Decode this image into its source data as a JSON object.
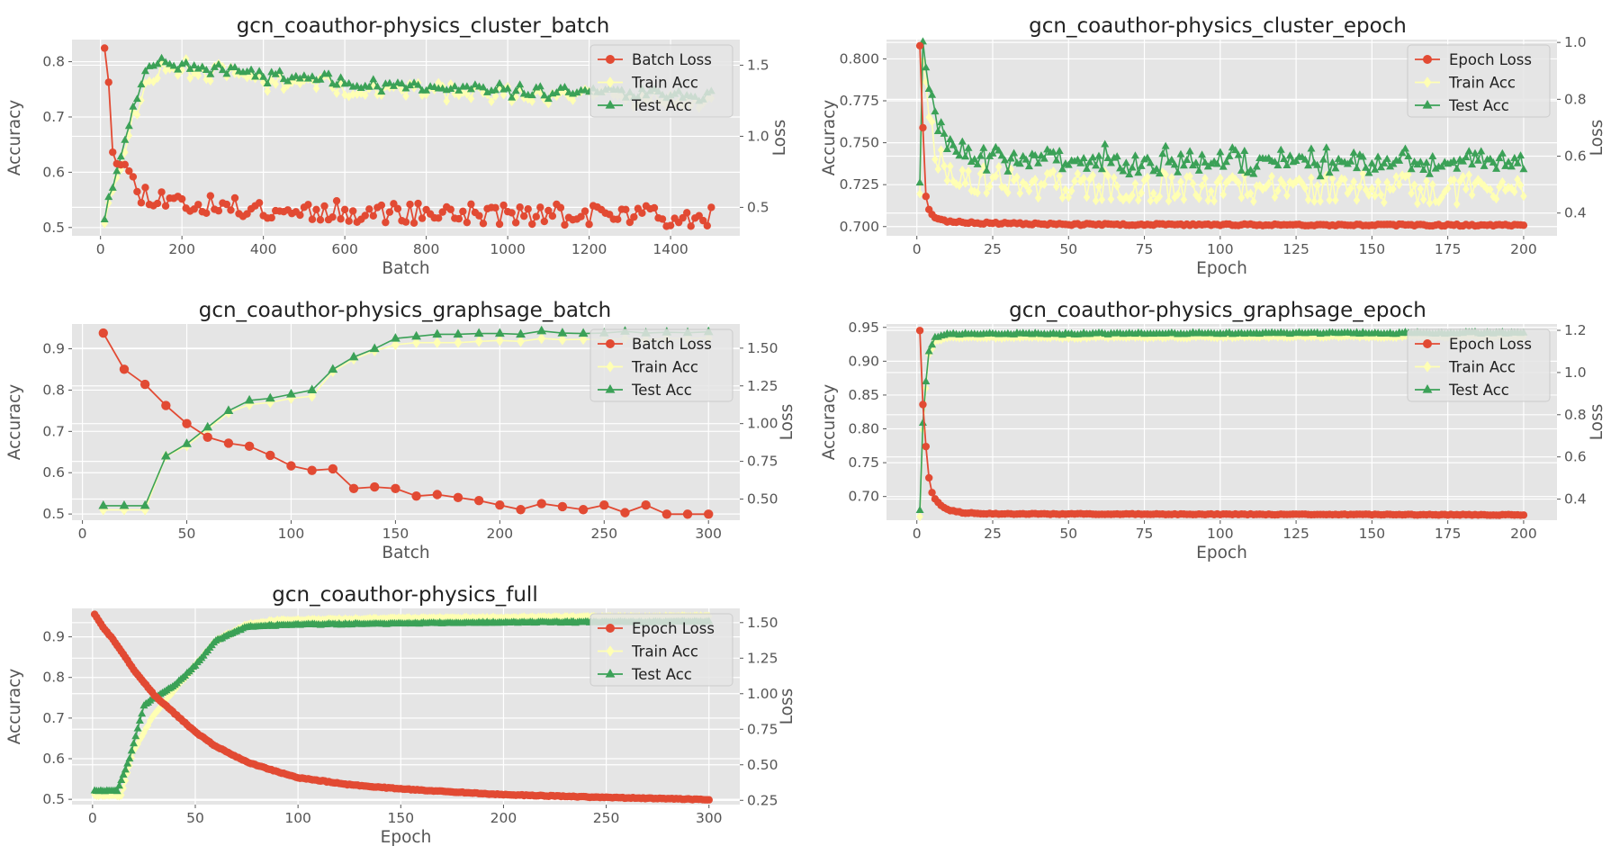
{
  "colors": {
    "loss": "#e24a33",
    "train": "#ffffb3",
    "test": "#3ba157",
    "panel_bg": "#e5e5e5",
    "grid": "#ffffff"
  },
  "chart_data": [
    {
      "type": "line",
      "title": "gcn_coauthor-physics_cluster_batch",
      "xlabel": "Batch",
      "ylabel": "Accuracy",
      "y2label": "Loss",
      "xlim": [
        -70,
        1570
      ],
      "ylim": [
        0.485,
        0.84
      ],
      "y2lim": [
        0.3,
        1.68
      ],
      "xticks": [
        0,
        200,
        400,
        600,
        800,
        1000,
        1200,
        1400
      ],
      "yticks": [
        0.5,
        0.6,
        0.7,
        0.8
      ],
      "ytick_labels": [
        "0.5",
        "0.6",
        "0.7",
        "0.8"
      ],
      "y2ticks": [
        0.5,
        1.0,
        1.5
      ],
      "y2tick_labels": [
        "0.5",
        "1.0",
        "1.5"
      ],
      "legend": [
        "Batch Loss",
        "Train Acc",
        "Test Acc"
      ],
      "legend_position": "upper-right",
      "grid": true,
      "gen": {
        "x": [
          10,
          1500,
          10
        ],
        "loss": [
          [
            10,
            1.62
          ],
          [
            20,
            1.4
          ],
          [
            30,
            0.95
          ],
          [
            40,
            0.85
          ],
          [
            50,
            0.82
          ],
          [
            60,
            0.78
          ],
          [
            80,
            0.68
          ],
          [
            100,
            0.6
          ],
          [
            150,
            0.57
          ],
          [
            200,
            0.53
          ],
          [
            300,
            0.5
          ],
          [
            600,
            0.47
          ],
          [
            1000,
            0.45
          ],
          [
            1500,
            0.44
          ]
        ],
        "loss_noise": 0.075,
        "loss_spikes": [
          [
            10,
            1.62
          ],
          [
            20,
            1.38
          ],
          [
            1500,
            0.5
          ]
        ],
        "train": [
          [
            10,
            0.515
          ],
          [
            40,
            0.58
          ],
          [
            80,
            0.7
          ],
          [
            120,
            0.77
          ],
          [
            170,
            0.79
          ],
          [
            250,
            0.785
          ],
          [
            400,
            0.765
          ],
          [
            800,
            0.745
          ],
          [
            1500,
            0.73
          ]
        ],
        "train_noise": 0.018,
        "test": [
          [
            10,
            0.52
          ],
          [
            40,
            0.6
          ],
          [
            80,
            0.72
          ],
          [
            120,
            0.79
          ],
          [
            170,
            0.8
          ],
          [
            250,
            0.79
          ],
          [
            400,
            0.775
          ],
          [
            800,
            0.75
          ],
          [
            1500,
            0.74
          ]
        ],
        "test_noise": 0.015,
        "seed": 11
      }
    },
    {
      "type": "line",
      "title": "gcn_coauthor-physics_cluster_epoch",
      "xlabel": "Epoch",
      "ylabel": "Accuracy",
      "y2label": "Loss",
      "xlim": [
        -10,
        211
      ],
      "ylim": [
        0.6945,
        0.8115
      ],
      "y2lim": [
        0.32,
        1.01
      ],
      "xticks": [
        0,
        25,
        50,
        75,
        100,
        125,
        150,
        175,
        200
      ],
      "yticks": [
        0.7,
        0.725,
        0.75,
        0.775,
        0.8
      ],
      "ytick_labels": [
        "0.700",
        "0.725",
        "0.750",
        "0.775",
        "0.800"
      ],
      "y2ticks": [
        0.4,
        0.6,
        0.8,
        1.0
      ],
      "y2tick_labels": [
        "0.4",
        "0.6",
        "0.8",
        "1.0"
      ],
      "legend": [
        "Epoch Loss",
        "Train Acc",
        "Test Acc"
      ],
      "legend_position": "upper-right",
      "grid": true,
      "gen": {
        "x": [
          1,
          200,
          1
        ],
        "loss": [
          [
            1,
            0.99
          ],
          [
            2,
            0.7
          ],
          [
            3,
            0.46
          ],
          [
            4,
            0.41
          ],
          [
            6,
            0.385
          ],
          [
            10,
            0.37
          ],
          [
            20,
            0.365
          ],
          [
            50,
            0.36
          ],
          [
            200,
            0.357
          ]
        ],
        "loss_noise": 0.003,
        "loss_spikes": [],
        "train": [
          [
            1,
            0.722
          ],
          [
            2,
            0.795
          ],
          [
            4,
            0.77
          ],
          [
            6,
            0.745
          ],
          [
            10,
            0.735
          ],
          [
            20,
            0.728
          ],
          [
            60,
            0.724
          ],
          [
            200,
            0.722
          ]
        ],
        "train_noise": 0.009,
        "test": [
          [
            1,
            0.727
          ],
          [
            2,
            0.805
          ],
          [
            4,
            0.785
          ],
          [
            8,
            0.755
          ],
          [
            15,
            0.745
          ],
          [
            30,
            0.74
          ],
          [
            200,
            0.738
          ]
        ],
        "test_noise": 0.01,
        "seed": 23
      }
    },
    {
      "type": "line",
      "title": "gcn_coauthor-physics_graphsage_batch",
      "xlabel": "Batch",
      "ylabel": "Accuracy",
      "y2label": "Loss",
      "xlim": [
        -5,
        315
      ],
      "ylim": [
        0.485,
        0.96
      ],
      "y2lim": [
        0.36,
        1.66
      ],
      "xticks": [
        0,
        50,
        100,
        150,
        200,
        250,
        300
      ],
      "yticks": [
        0.5,
        0.6,
        0.7,
        0.8,
        0.9
      ],
      "ytick_labels": [
        "0.5",
        "0.6",
        "0.7",
        "0.8",
        "0.9"
      ],
      "y2ticks": [
        0.5,
        0.75,
        1.0,
        1.25,
        1.5
      ],
      "y2tick_labels": [
        "0.50",
        "0.75",
        "1.00",
        "1.25",
        "1.50"
      ],
      "legend": [
        "Batch Loss",
        "Train Acc",
        "Test Acc"
      ],
      "legend_position": "upper-right",
      "grid": true,
      "x": [
        10,
        20,
        30,
        40,
        50,
        60,
        70,
        80,
        90,
        100,
        110,
        120,
        130,
        140,
        150,
        160,
        170,
        180,
        190,
        200,
        210,
        220,
        230,
        240,
        250,
        260,
        270,
        280,
        290,
        300
      ],
      "series": [
        {
          "name": "Batch Loss",
          "axis": "right",
          "values": [
            1.6,
            1.36,
            1.26,
            1.12,
            1.0,
            0.91,
            0.87,
            0.85,
            0.79,
            0.72,
            0.69,
            0.7,
            0.57,
            0.58,
            0.57,
            0.52,
            0.53,
            0.51,
            0.49,
            0.46,
            0.43,
            0.47,
            0.45,
            0.43,
            0.46,
            0.41,
            0.46,
            0.4,
            0.4,
            0.4
          ]
        },
        {
          "name": "Train Acc",
          "axis": "left",
          "values": [
            0.51,
            0.51,
            0.51,
            0.64,
            0.665,
            0.705,
            0.745,
            0.765,
            0.77,
            0.78,
            0.785,
            0.845,
            0.875,
            0.895,
            0.91,
            0.915,
            0.915,
            0.915,
            0.918,
            0.92,
            0.918,
            0.925,
            0.922,
            0.923,
            0.922,
            0.925,
            0.922,
            0.925,
            0.925,
            0.926
          ]
        },
        {
          "name": "Test Acc",
          "axis": "left",
          "values": [
            0.52,
            0.52,
            0.52,
            0.64,
            0.67,
            0.71,
            0.75,
            0.775,
            0.78,
            0.79,
            0.8,
            0.85,
            0.88,
            0.9,
            0.925,
            0.93,
            0.935,
            0.935,
            0.937,
            0.937,
            0.935,
            0.943,
            0.938,
            0.937,
            0.938,
            0.942,
            0.938,
            0.94,
            0.939,
            0.941
          ]
        }
      ]
    },
    {
      "type": "line",
      "title": "gcn_coauthor-physics_graphsage_epoch",
      "xlabel": "Epoch",
      "ylabel": "Accuracy",
      "y2label": "Loss",
      "xlim": [
        -10,
        211
      ],
      "ylim": [
        0.665,
        0.955
      ],
      "y2lim": [
        0.3,
        1.23
      ],
      "xticks": [
        0,
        25,
        50,
        75,
        100,
        125,
        150,
        175,
        200
      ],
      "yticks": [
        0.7,
        0.75,
        0.8,
        0.85,
        0.9,
        0.95
      ],
      "ytick_labels": [
        "0.70",
        "0.75",
        "0.80",
        "0.85",
        "0.90",
        "0.95"
      ],
      "y2ticks": [
        0.4,
        0.6,
        0.8,
        1.0,
        1.2
      ],
      "y2tick_labels": [
        "0.4",
        "0.6",
        "0.8",
        "1.0",
        "1.2"
      ],
      "legend": [
        "Epoch Loss",
        "Train Acc",
        "Test Acc"
      ],
      "legend_position": "upper-right",
      "grid": true,
      "gen": {
        "x": [
          1,
          200,
          1
        ],
        "loss": [
          [
            1,
            1.2
          ],
          [
            2,
            0.85
          ],
          [
            3,
            0.65
          ],
          [
            4,
            0.5
          ],
          [
            5,
            0.43
          ],
          [
            6,
            0.4
          ],
          [
            8,
            0.37
          ],
          [
            10,
            0.35
          ],
          [
            15,
            0.335
          ],
          [
            25,
            0.33
          ],
          [
            200,
            0.325
          ]
        ],
        "loss_noise": 0.002,
        "loss_spikes": [],
        "train": [
          [
            1,
            0.67
          ],
          [
            2,
            0.8
          ],
          [
            3,
            0.86
          ],
          [
            4,
            0.91
          ],
          [
            6,
            0.93
          ],
          [
            10,
            0.935
          ],
          [
            200,
            0.937
          ]
        ],
        "train_noise": 0.0015,
        "test": [
          [
            1,
            0.68
          ],
          [
            2,
            0.81
          ],
          [
            3,
            0.87
          ],
          [
            4,
            0.915
          ],
          [
            6,
            0.935
          ],
          [
            10,
            0.94
          ],
          [
            200,
            0.942
          ]
        ],
        "test_noise": 0.0018,
        "seed": 37
      }
    },
    {
      "type": "line",
      "title": "gcn_coauthor-physics_full",
      "xlabel": "Epoch",
      "ylabel": "Accuracy",
      "y2label": "Loss",
      "xlim": [
        -10,
        315
      ],
      "ylim": [
        0.487,
        0.97
      ],
      "y2lim": [
        0.22,
        1.6
      ],
      "xticks": [
        0,
        50,
        100,
        150,
        200,
        250,
        300
      ],
      "yticks": [
        0.5,
        0.6,
        0.7,
        0.8,
        0.9
      ],
      "ytick_labels": [
        "0.5",
        "0.6",
        "0.7",
        "0.8",
        "0.9"
      ],
      "y2ticks": [
        0.25,
        0.5,
        0.75,
        1.0,
        1.25,
        1.5
      ],
      "y2tick_labels": [
        "0.25",
        "0.50",
        "0.75",
        "1.00",
        "1.25",
        "1.50"
      ],
      "legend": [
        "Epoch Loss",
        "Train Acc",
        "Test Acc"
      ],
      "legend_position": "upper-right",
      "grid": true,
      "gen": {
        "x": [
          1,
          300,
          1
        ],
        "loss": [
          [
            1,
            1.56
          ],
          [
            5,
            1.47
          ],
          [
            10,
            1.38
          ],
          [
            15,
            1.28
          ],
          [
            20,
            1.17
          ],
          [
            30,
            0.99
          ],
          [
            40,
            0.86
          ],
          [
            50,
            0.73
          ],
          [
            60,
            0.63
          ],
          [
            75,
            0.52
          ],
          [
            90,
            0.45
          ],
          [
            100,
            0.41
          ],
          [
            125,
            0.36
          ],
          [
            150,
            0.33
          ],
          [
            200,
            0.29
          ],
          [
            250,
            0.27
          ],
          [
            300,
            0.255
          ]
        ],
        "loss_noise": 0.003,
        "loss_spikes": [],
        "train": [
          [
            1,
            0.51
          ],
          [
            14,
            0.51
          ],
          [
            20,
            0.62
          ],
          [
            30,
            0.71
          ],
          [
            40,
            0.77
          ],
          [
            50,
            0.83
          ],
          [
            60,
            0.89
          ],
          [
            75,
            0.93
          ],
          [
            90,
            0.94
          ],
          [
            150,
            0.945
          ],
          [
            300,
            0.95
          ]
        ],
        "train_noise": 0.002,
        "test": [
          [
            1,
            0.52
          ],
          [
            12,
            0.52
          ],
          [
            18,
            0.6
          ],
          [
            25,
            0.73
          ],
          [
            30,
            0.75
          ],
          [
            40,
            0.78
          ],
          [
            50,
            0.83
          ],
          [
            60,
            0.89
          ],
          [
            75,
            0.925
          ],
          [
            100,
            0.93
          ],
          [
            200,
            0.935
          ],
          [
            300,
            0.937
          ]
        ],
        "test_noise": 0.002,
        "seed": 51
      }
    }
  ]
}
